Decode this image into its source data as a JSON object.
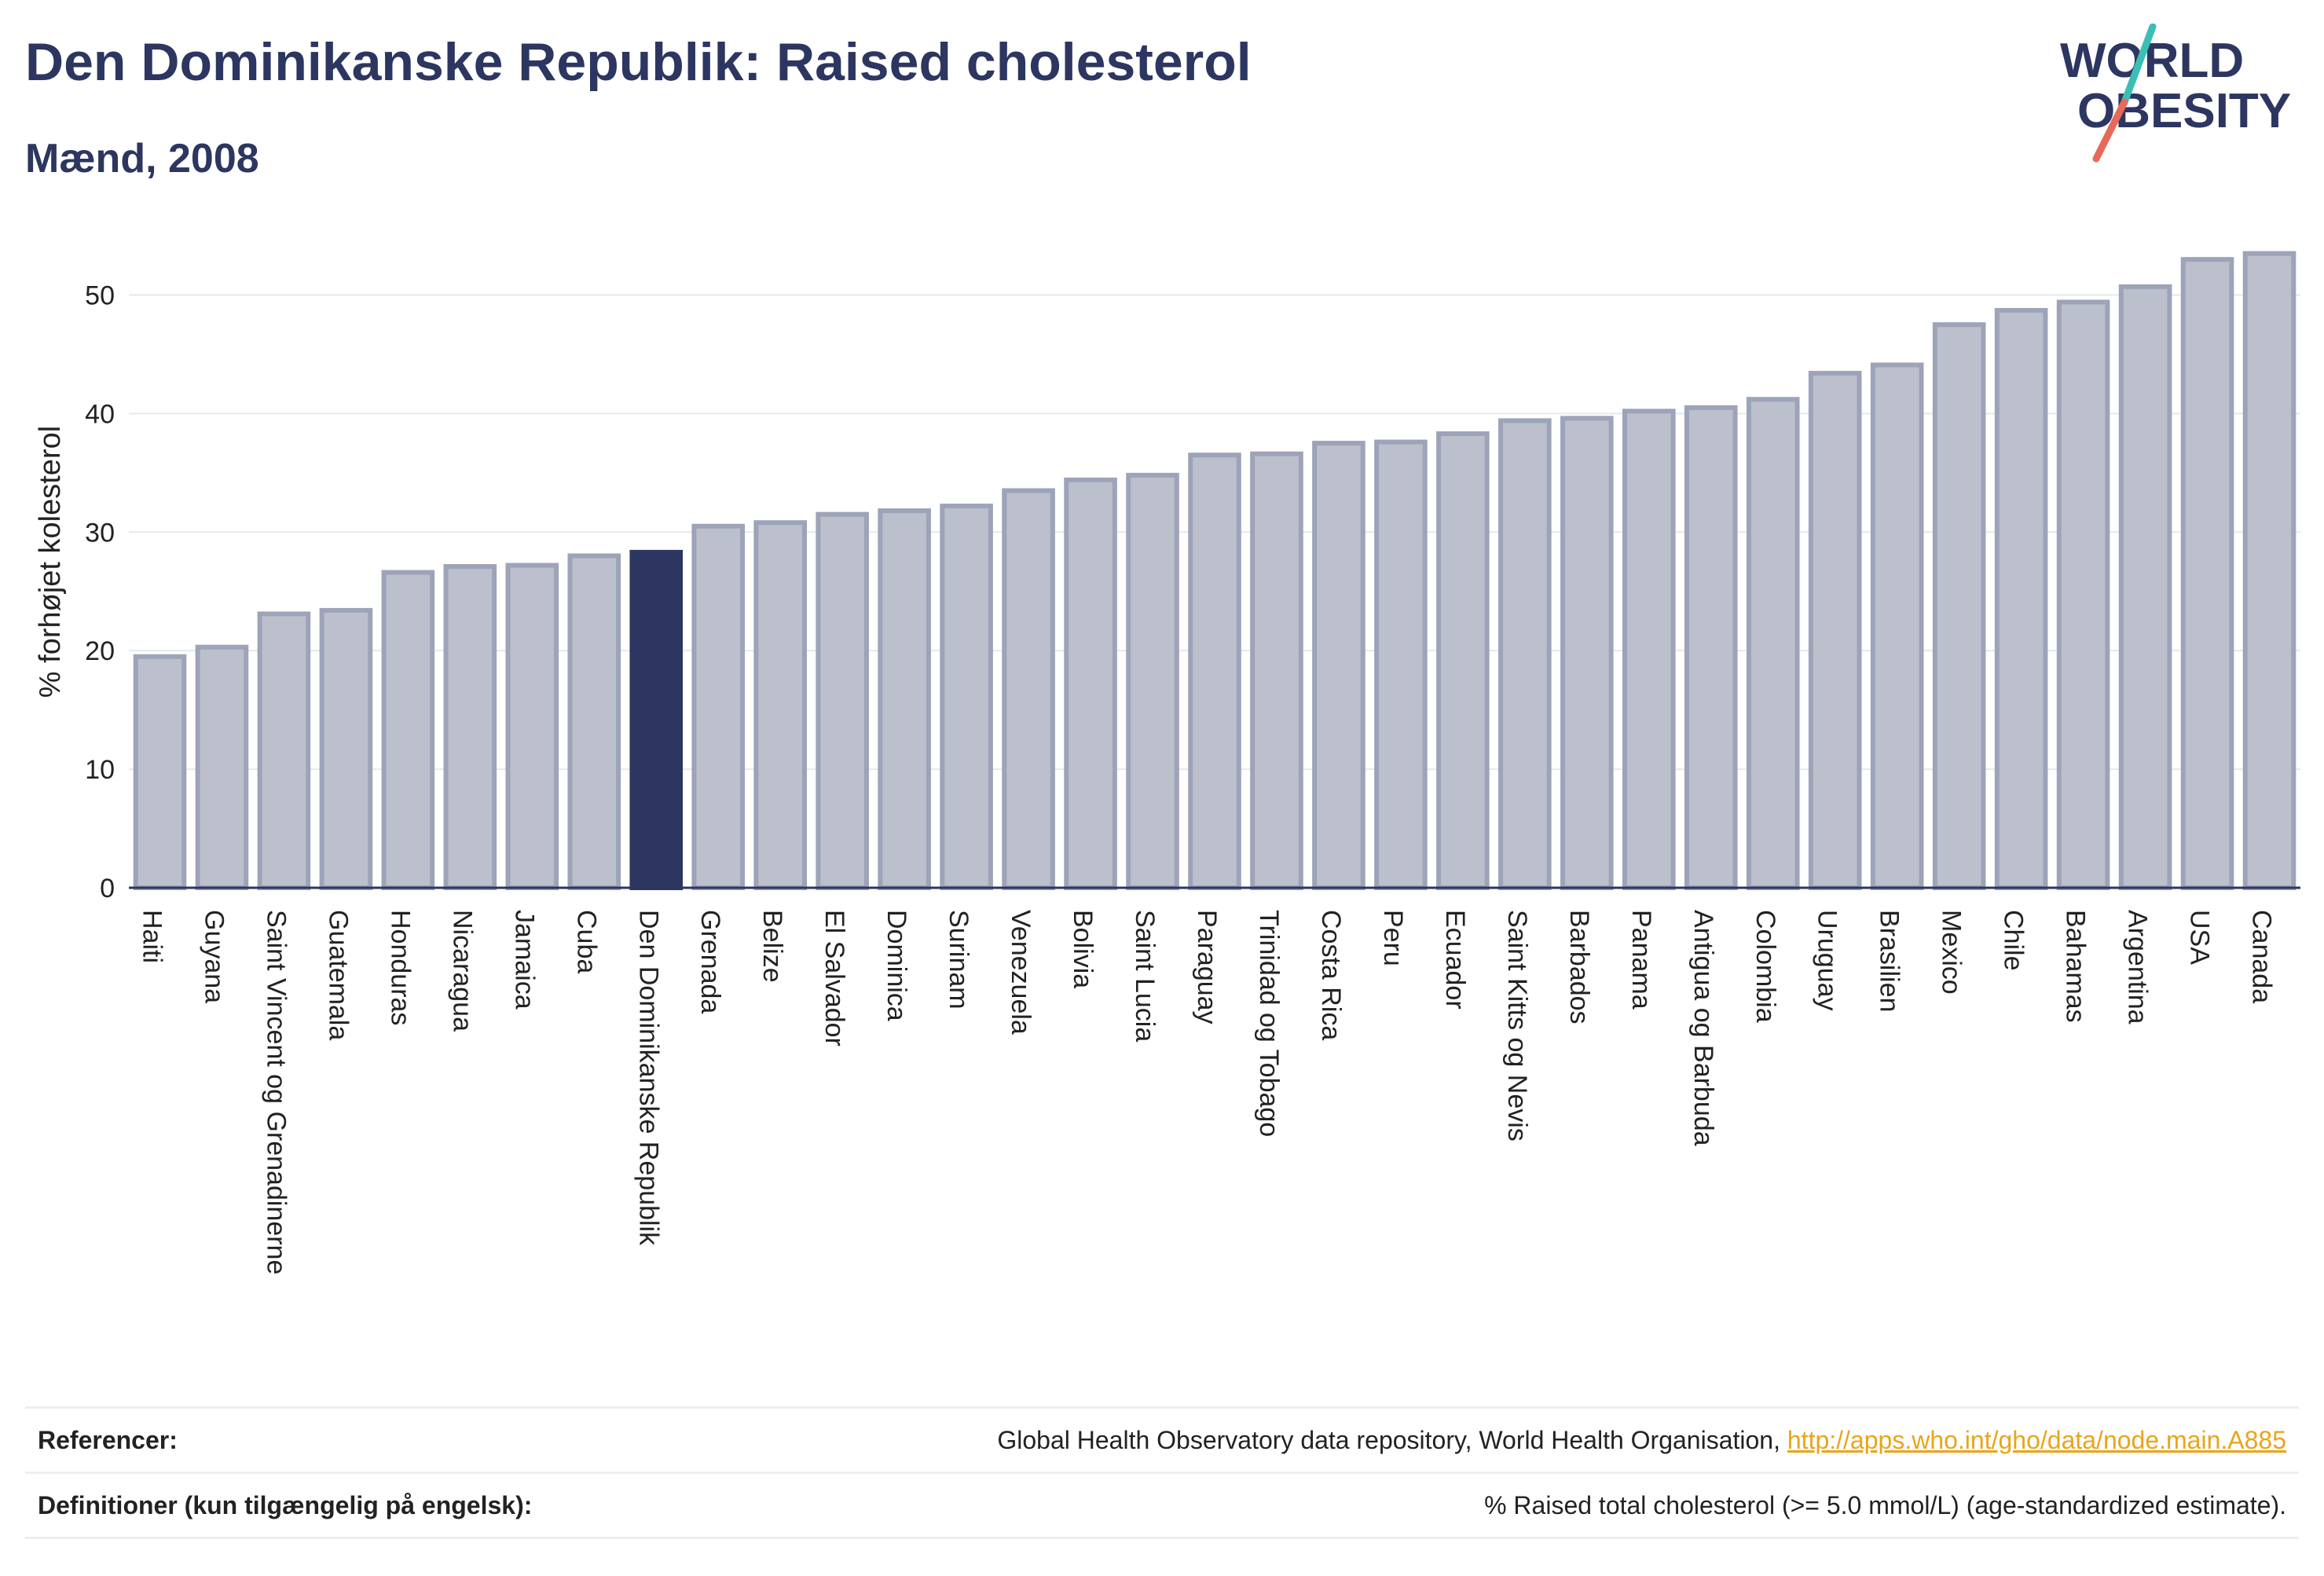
{
  "header": {
    "title": "Den Dominikanske Republik: Raised cholesterol",
    "subtitle": "Mænd, 2008"
  },
  "logo": {
    "line1": "WORLD",
    "line2": "OBESITY",
    "colors": {
      "text": "#2c3660",
      "slash_top": "#3bbfb4",
      "slash_bottom": "#e8695a"
    }
  },
  "colors": {
    "bar": "#bcc0cd",
    "bar_border": "#9da3b8",
    "highlight": "#2c3660",
    "axis_text": "#222222",
    "grid": "#e6e8ee"
  },
  "chart_data": {
    "type": "bar",
    "title": "Den Dominikanske Republik: Raised cholesterol",
    "subtitle": "Mænd, 2008",
    "xlabel": "",
    "ylabel": "% forhøjet kolesterol",
    "ylim": [
      0,
      55
    ],
    "yticks": [
      0,
      10,
      20,
      30,
      40,
      50
    ],
    "grid": true,
    "highlight": "Den Dominikanske Republik",
    "categories": [
      "Haiti",
      "Guyana",
      "Saint Vincent og Grenadinerne",
      "Guatemala",
      "Honduras",
      "Nicaragua",
      "Jamaica",
      "Cuba",
      "Den Dominikanske Republik",
      "Grenada",
      "Belize",
      "El Salvador",
      "Dominica",
      "Surinam",
      "Venezuela",
      "Bolivia",
      "Saint Lucia",
      "Paraguay",
      "Trinidad og Tobago",
      "Costa Rica",
      "Peru",
      "Ecuador",
      "Saint Kitts og Nevis",
      "Barbados",
      "Panama",
      "Antigua og Barbuda",
      "Colombia",
      "Uruguay",
      "Brasilien",
      "Mexico",
      "Chile",
      "Bahamas",
      "Argentina",
      "USA",
      "Canada"
    ],
    "values": [
      19.5,
      20.3,
      23.1,
      23.4,
      26.6,
      27.1,
      27.2,
      28.0,
      28.3,
      30.5,
      30.8,
      31.5,
      31.8,
      32.2,
      33.5,
      34.4,
      34.8,
      36.5,
      36.6,
      37.5,
      37.6,
      38.3,
      39.4,
      39.6,
      40.2,
      40.5,
      41.2,
      43.4,
      44.1,
      47.5,
      48.7,
      49.4,
      50.7,
      53.0,
      53.5
    ]
  },
  "footer": {
    "references_label": "Referencer:",
    "references_text": "Global Health Observatory data repository, World Health Organisation, ",
    "references_link": "http://apps.who.int/gho/data/node.main.A885",
    "definitions_label": "Definitioner (kun tilgængelig på engelsk):",
    "definitions_text": "% Raised total cholesterol (>= 5.0 mmol/L) (age-standardized estimate)."
  }
}
